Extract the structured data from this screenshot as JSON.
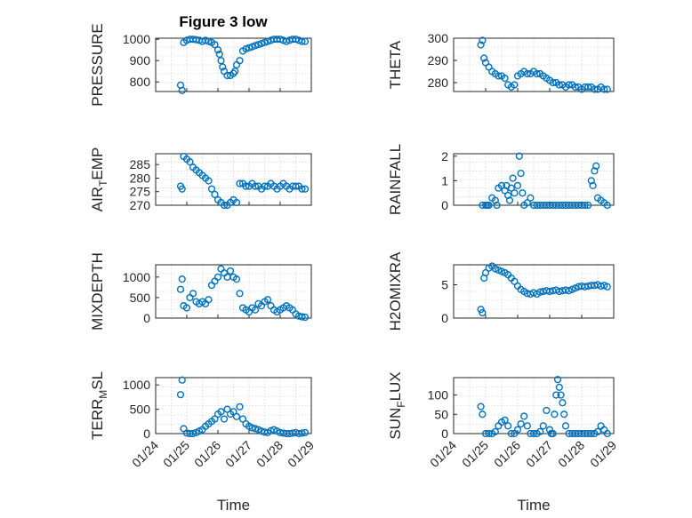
{
  "figure": {
    "title": "Figure 3 low",
    "marker_color": "#0072BD"
  },
  "chart_data": [
    {
      "type": "scatter",
      "ylabel": "PRESSURE",
      "ylim": [
        755,
        1005
      ],
      "yticks": [
        800,
        900,
        1000
      ],
      "xlim": [
        0,
        5
      ],
      "xticklabels_visible": false,
      "grid": true,
      "x": [
        0.8,
        0.85,
        0.9,
        1.0,
        1.1,
        1.2,
        1.3,
        1.4,
        1.5,
        1.6,
        1.7,
        1.8,
        1.9,
        2.0,
        2.05,
        2.1,
        2.15,
        2.2,
        2.3,
        2.4,
        2.5,
        2.55,
        2.6,
        2.7,
        2.8,
        2.9,
        3.0,
        3.1,
        3.2,
        3.3,
        3.4,
        3.5,
        3.6,
        3.7,
        3.8,
        3.9,
        4.0,
        4.1,
        4.2,
        4.3,
        4.4,
        4.5,
        4.6,
        4.7,
        4.8
      ],
      "y": [
        785,
        760,
        985,
        995,
        1000,
        1000,
        998,
        995,
        990,
        995,
        990,
        985,
        975,
        950,
        930,
        900,
        870,
        850,
        830,
        830,
        840,
        850,
        880,
        900,
        945,
        955,
        960,
        965,
        970,
        975,
        980,
        985,
        990,
        995,
        1000,
        1000,
        1000,
        995,
        990,
        995,
        1000,
        1000,
        995,
        990,
        990
      ]
    },
    {
      "type": "scatter",
      "ylabel": "THETA",
      "ylim": [
        276,
        300
      ],
      "yticks": [
        280,
        290,
        300
      ],
      "xlim": [
        0,
        5
      ],
      "xticklabels_visible": false,
      "grid": true,
      "x": [
        0.85,
        0.9,
        0.95,
        1.0,
        1.1,
        1.2,
        1.3,
        1.4,
        1.5,
        1.6,
        1.7,
        1.8,
        1.9,
        2.0,
        2.1,
        2.2,
        2.3,
        2.4,
        2.5,
        2.6,
        2.7,
        2.8,
        2.9,
        3.0,
        3.1,
        3.2,
        3.3,
        3.4,
        3.5,
        3.6,
        3.7,
        3.8,
        3.9,
        4.0,
        4.1,
        4.2,
        4.3,
        4.4,
        4.5,
        4.6,
        4.7,
        4.8
      ],
      "y": [
        297,
        299,
        291,
        289,
        287,
        285,
        284,
        283,
        283,
        282,
        279,
        278,
        279,
        283,
        284,
        285,
        284,
        284,
        285,
        284,
        284,
        283,
        282,
        281,
        280,
        280,
        279,
        279,
        278,
        279,
        279,
        278,
        278,
        277,
        278,
        278,
        278,
        277,
        277,
        278,
        277,
        277
      ]
    },
    {
      "type": "scatter",
      "ylabel": "AIR_TEMP",
      "ylim": [
        270,
        289
      ],
      "yticks": [
        270,
        275,
        280,
        285
      ],
      "xlim": [
        0,
        5
      ],
      "xticklabels_visible": false,
      "grid": true,
      "x": [
        0.8,
        0.85,
        0.9,
        1.0,
        1.1,
        1.2,
        1.3,
        1.4,
        1.5,
        1.6,
        1.7,
        1.8,
        1.9,
        2.0,
        2.1,
        2.2,
        2.3,
        2.4,
        2.5,
        2.6,
        2.7,
        2.8,
        2.9,
        3.0,
        3.1,
        3.2,
        3.3,
        3.4,
        3.5,
        3.6,
        3.7,
        3.8,
        3.9,
        4.0,
        4.1,
        4.2,
        4.3,
        4.4,
        4.5,
        4.6,
        4.7,
        4.8
      ],
      "y": [
        277,
        276,
        288,
        287,
        286,
        284,
        283,
        282,
        281,
        280,
        279,
        276,
        274,
        272,
        271,
        270,
        270,
        271,
        272,
        271,
        278,
        278,
        277,
        277,
        278,
        277,
        277,
        276,
        277,
        277,
        278,
        277,
        276,
        277,
        278,
        277,
        276,
        277,
        277,
        277,
        276,
        276
      ]
    },
    {
      "type": "scatter",
      "ylabel": "RAINFALL",
      "ylim": [
        0,
        2.1
      ],
      "yticks": [
        0,
        1,
        2
      ],
      "xlim": [
        0,
        5
      ],
      "xticklabels_visible": false,
      "grid": true,
      "x": [
        0.9,
        1.0,
        1.05,
        1.1,
        1.2,
        1.3,
        1.35,
        1.4,
        1.5,
        1.6,
        1.65,
        1.7,
        1.75,
        1.8,
        1.85,
        1.9,
        2.0,
        2.05,
        2.1,
        2.15,
        2.2,
        2.3,
        2.4,
        2.5,
        2.6,
        2.7,
        2.8,
        2.9,
        3.0,
        3.1,
        3.2,
        3.3,
        3.4,
        3.5,
        3.6,
        3.7,
        3.8,
        3.9,
        4.0,
        4.1,
        4.2,
        4.3,
        4.35,
        4.4,
        4.45,
        4.5,
        4.6,
        4.7,
        4.8
      ],
      "y": [
        0,
        0,
        0,
        0,
        0.3,
        0.2,
        0,
        0.7,
        0.8,
        0.6,
        0.8,
        0.4,
        0.2,
        0.7,
        1.1,
        0.5,
        0.8,
        2.0,
        1.3,
        0.5,
        0,
        0.1,
        0.3,
        0,
        0,
        0,
        0,
        0,
        0,
        0,
        0,
        0,
        0,
        0,
        0,
        0,
        0,
        0,
        0,
        0,
        0,
        1.0,
        0.8,
        1.4,
        1.6,
        0.3,
        0.2,
        0.1,
        0
      ]
    },
    {
      "type": "scatter",
      "ylabel": "MIXDEPTH",
      "ylim": [
        0,
        1300
      ],
      "yticks": [
        0,
        500,
        1000
      ],
      "xlim": [
        0,
        5
      ],
      "xticklabels_visible": false,
      "grid": true,
      "x": [
        0.8,
        0.85,
        0.9,
        1.0,
        1.1,
        1.2,
        1.3,
        1.4,
        1.5,
        1.6,
        1.7,
        1.8,
        1.9,
        2.0,
        2.1,
        2.2,
        2.3,
        2.4,
        2.5,
        2.6,
        2.7,
        2.8,
        2.9,
        3.0,
        3.1,
        3.2,
        3.3,
        3.4,
        3.5,
        3.6,
        3.7,
        3.8,
        3.9,
        4.0,
        4.1,
        4.2,
        4.3,
        4.4,
        4.5,
        4.6,
        4.7,
        4.8
      ],
      "y": [
        700,
        950,
        300,
        250,
        500,
        600,
        400,
        350,
        400,
        350,
        450,
        800,
        900,
        1000,
        1200,
        1100,
        1000,
        1150,
        1000,
        950,
        600,
        250,
        200,
        150,
        250,
        200,
        350,
        300,
        400,
        450,
        300,
        200,
        150,
        200,
        250,
        300,
        250,
        200,
        100,
        50,
        30,
        20
      ]
    },
    {
      "type": "scatter",
      "ylabel": "H2OMIXRA",
      "ylim": [
        0,
        8
      ],
      "yticks": [
        0,
        5
      ],
      "xlim": [
        0,
        5
      ],
      "xticklabels_visible": false,
      "grid": true,
      "x": [
        0.85,
        0.9,
        0.95,
        1.0,
        1.1,
        1.2,
        1.3,
        1.4,
        1.5,
        1.6,
        1.7,
        1.8,
        1.9,
        2.0,
        2.1,
        2.2,
        2.3,
        2.4,
        2.5,
        2.6,
        2.7,
        2.8,
        2.9,
        3.0,
        3.1,
        3.2,
        3.3,
        3.4,
        3.5,
        3.6,
        3.7,
        3.8,
        3.9,
        4.0,
        4.1,
        4.2,
        4.3,
        4.4,
        4.5,
        4.6,
        4.7,
        4.8
      ],
      "y": [
        1.3,
        0.8,
        6.0,
        6.8,
        7.5,
        7.8,
        7.4,
        7.2,
        7.0,
        6.8,
        6.5,
        6.0,
        5.5,
        4.8,
        4.3,
        4.0,
        3.7,
        3.6,
        3.8,
        3.6,
        3.9,
        4.0,
        4.1,
        4.0,
        4.1,
        4.2,
        4.0,
        4.1,
        4.2,
        4.1,
        4.3,
        4.5,
        4.7,
        4.8,
        4.7,
        4.8,
        4.9,
        4.9,
        5.0,
        4.8,
        4.9,
        4.7
      ]
    },
    {
      "type": "scatter",
      "ylabel": "TERR_MSL",
      "ylim": [
        0,
        1150
      ],
      "yticks": [
        0,
        500,
        1000
      ],
      "xlim": [
        0,
        5
      ],
      "xticklabels_visible": false,
      "grid": true,
      "x": [
        0.8,
        0.85,
        0.9,
        1.0,
        1.1,
        1.2,
        1.3,
        1.4,
        1.5,
        1.6,
        1.7,
        1.8,
        1.9,
        2.0,
        2.1,
        2.2,
        2.3,
        2.4,
        2.5,
        2.6,
        2.7,
        2.8,
        2.9,
        3.0,
        3.1,
        3.2,
        3.3,
        3.4,
        3.5,
        3.6,
        3.7,
        3.8,
        3.9,
        4.0,
        4.1,
        4.2,
        4.3,
        4.4,
        4.5,
        4.6,
        4.7,
        4.8
      ],
      "y": [
        800,
        1100,
        100,
        10,
        0,
        0,
        20,
        50,
        80,
        150,
        200,
        250,
        300,
        400,
        450,
        300,
        500,
        400,
        450,
        350,
        550,
        300,
        200,
        150,
        120,
        100,
        80,
        50,
        30,
        20,
        60,
        80,
        50,
        20,
        10,
        0,
        0,
        10,
        20,
        0,
        10,
        20
      ]
    },
    {
      "type": "scatter",
      "ylabel": "SUN_FLUX",
      "ylim": [
        0,
        145
      ],
      "yticks": [
        0,
        50,
        100
      ],
      "xlim": [
        0,
        5
      ],
      "xticklabels_visible": false,
      "grid": true,
      "x": [
        0.85,
        0.9,
        1.0,
        1.1,
        1.2,
        1.3,
        1.4,
        1.5,
        1.6,
        1.7,
        1.8,
        1.9,
        2.0,
        2.1,
        2.2,
        2.3,
        2.4,
        2.5,
        2.6,
        2.7,
        2.8,
        2.9,
        3.0,
        3.05,
        3.1,
        3.15,
        3.2,
        3.25,
        3.3,
        3.35,
        3.4,
        3.45,
        3.5,
        3.6,
        3.7,
        3.8,
        3.9,
        4.0,
        4.1,
        4.2,
        4.3,
        4.4,
        4.5,
        4.6,
        4.7,
        4.8
      ],
      "y": [
        70,
        50,
        0,
        0,
        0,
        5,
        20,
        30,
        35,
        20,
        0,
        0,
        10,
        25,
        45,
        20,
        0,
        0,
        0,
        5,
        20,
        60,
        10,
        0,
        0,
        50,
        100,
        140,
        120,
        100,
        80,
        50,
        20,
        0,
        0,
        0,
        0,
        0,
        0,
        0,
        0,
        0,
        5,
        20,
        10,
        0
      ]
    }
  ],
  "x_axis": {
    "ticklabels": [
      "01/24",
      "01/25",
      "01/26",
      "01/27",
      "01/28",
      "01/29"
    ],
    "label": "Time"
  }
}
